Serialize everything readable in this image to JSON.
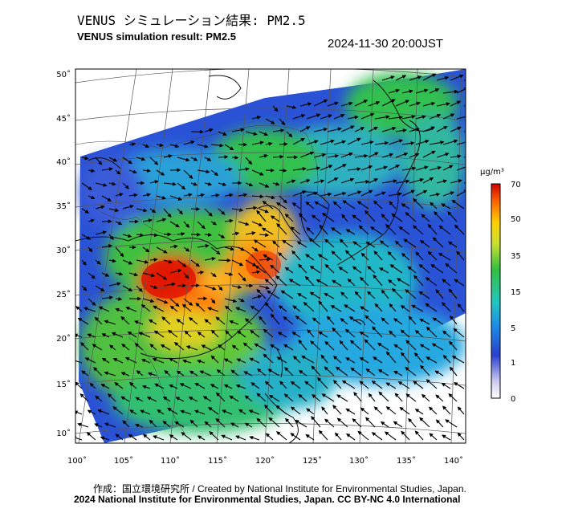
{
  "header": {
    "title_ja": "VENUS シミュレーション結果: PM2.5",
    "title_en": "VENUS simulation result: PM2.5",
    "timestamp": "2024-11-30 20:00JST"
  },
  "map": {
    "lat_labels": [
      "50˚",
      "45˚",
      "40˚",
      "35˚",
      "30˚",
      "25˚",
      "20˚",
      "15˚",
      "10˚"
    ],
    "lon_labels": [
      "100˚",
      "105˚",
      "110˚",
      "115˚",
      "120˚",
      "125˚",
      "130˚",
      "135˚",
      "140˚"
    ],
    "lat_values": [
      50,
      45,
      40,
      35,
      30,
      25,
      20,
      15,
      10
    ],
    "lon_values": [
      100,
      105,
      110,
      115,
      120,
      125,
      130,
      135,
      140
    ]
  },
  "colorbar": {
    "unit": "μg/m³",
    "tick_labels": [
      "70",
      "50",
      "35",
      "15",
      "5",
      "1",
      "0"
    ],
    "colors": [
      "#ffffff",
      "#2244cc",
      "#1aa0e6",
      "#22c060",
      "#ffd700",
      "#ff6a00",
      "#cc0000"
    ]
  },
  "footer": {
    "credit_ja": "作成：国立環境研究所 / Created by National Institute for Environmental Studies, Japan.",
    "credit_en": "2024 National Institute for Environmental Studies, Japan. CC BY-NC 4.0 International"
  }
}
